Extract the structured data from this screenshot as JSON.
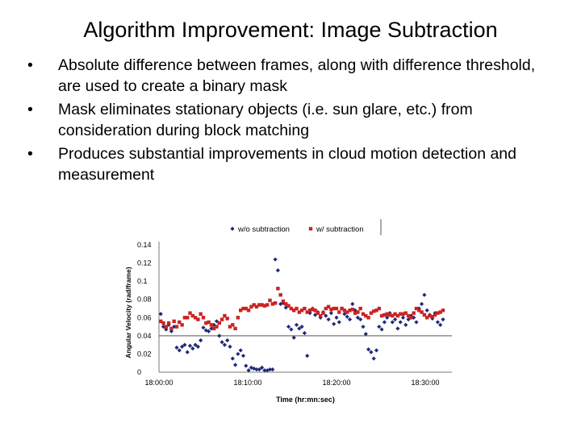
{
  "slide": {
    "title": "Algorithm Improvement: Image Subtraction",
    "bullets": [
      "Absolute difference between frames, along with difference threshold, are used to create a binary mask",
      "Mask eliminates stationary objects (i.e. sun glare, etc.) from consideration during block matching",
      "Produces substantial improvements in cloud motion detection and measurement"
    ],
    "bullet_symbol": "•"
  },
  "chart_data": {
    "type": "scatter",
    "xlabel": "Time (hr:mn:sec)",
    "ylabel": "Angular Velocity (rad/frame)",
    "ylim": [
      0,
      0.14
    ],
    "yticks": [
      0,
      0.02,
      0.04,
      0.06,
      0.08,
      0.1,
      0.12,
      0.14
    ],
    "ytick_labels": [
      "0",
      "0.02",
      "0.04",
      "0.06",
      "0.08",
      "0.1",
      "0.12",
      "0.14"
    ],
    "xlim_minutes": [
      0,
      33
    ],
    "xticks_minutes": [
      0,
      10,
      20,
      30
    ],
    "xtick_labels": [
      "18:00:00",
      "18:10:00",
      "18:20:00",
      "18:30:00"
    ],
    "grid": {
      "horizontal_at": [
        0.04
      ],
      "vertical": false
    },
    "legend_placement": "top",
    "series": [
      {
        "name": "w/o subtraction",
        "color": "#1f2a7a",
        "marker": "diamond",
        "x_minutes": [
          0.2,
          0.5,
          0.8,
          1.1,
          1.4,
          1.7,
          2.0,
          2.3,
          2.6,
          2.9,
          3.2,
          3.5,
          3.8,
          4.1,
          4.4,
          4.7,
          5.0,
          5.3,
          5.6,
          5.9,
          6.2,
          6.5,
          6.8,
          7.1,
          7.4,
          7.7,
          8.0,
          8.3,
          8.6,
          8.9,
          9.2,
          9.5,
          9.8,
          10.1,
          10.4,
          10.7,
          11.0,
          11.3,
          11.6,
          11.9,
          12.2,
          12.5,
          12.8,
          13.1,
          13.4,
          13.7,
          14.0,
          14.3,
          14.6,
          14.9,
          15.2,
          15.5,
          15.8,
          16.1,
          16.4,
          16.7,
          17.0,
          17.3,
          17.6,
          17.9,
          18.2,
          18.5,
          18.8,
          19.1,
          19.4,
          19.7,
          20.0,
          20.3,
          20.6,
          20.9,
          21.2,
          21.5,
          21.8,
          22.1,
          22.4,
          22.7,
          23.0,
          23.3,
          23.6,
          23.9,
          24.2,
          24.5,
          24.8,
          25.1,
          25.4,
          25.7,
          26.0,
          26.3,
          26.6,
          26.9,
          27.2,
          27.5,
          27.8,
          28.1,
          28.4,
          28.7,
          29.0,
          29.3,
          29.6,
          29.9,
          30.2,
          30.5,
          30.8,
          31.1,
          31.4,
          31.7,
          32.0
        ],
        "values": [
          0.064,
          0.05,
          0.047,
          0.052,
          0.045,
          0.05,
          0.027,
          0.024,
          0.028,
          0.03,
          0.022,
          0.029,
          0.026,
          0.03,
          0.028,
          0.035,
          0.049,
          0.046,
          0.045,
          0.048,
          0.052,
          0.056,
          0.04,
          0.033,
          0.03,
          0.035,
          0.028,
          0.015,
          0.008,
          0.02,
          0.024,
          0.018,
          0.007,
          0.002,
          0.005,
          0.004,
          0.003,
          0.003,
          0.005,
          0.002,
          0.002,
          0.003,
          0.003,
          0.124,
          0.112,
          0.075,
          0.076,
          0.071,
          0.05,
          0.047,
          0.038,
          0.052,
          0.048,
          0.05,
          0.043,
          0.018,
          0.065,
          0.07,
          0.063,
          0.066,
          0.06,
          0.066,
          0.062,
          0.058,
          0.065,
          0.053,
          0.06,
          0.055,
          0.07,
          0.064,
          0.061,
          0.058,
          0.075,
          0.068,
          0.06,
          0.058,
          0.05,
          0.042,
          0.025,
          0.022,
          0.015,
          0.024,
          0.05,
          0.047,
          0.055,
          0.06,
          0.065,
          0.055,
          0.058,
          0.048,
          0.055,
          0.06,
          0.052,
          0.058,
          0.062,
          0.06,
          0.055,
          0.07,
          0.075,
          0.085,
          0.068,
          0.063,
          0.059,
          0.065,
          0.055,
          0.052,
          0.058
        ]
      },
      {
        "name": "w/ subtraction",
        "color": "#cc2222",
        "marker": "square",
        "x_minutes": [
          0.2,
          0.5,
          0.8,
          1.1,
          1.4,
          1.7,
          2.0,
          2.3,
          2.6,
          2.9,
          3.2,
          3.5,
          3.8,
          4.1,
          4.4,
          4.7,
          5.0,
          5.3,
          5.6,
          5.9,
          6.2,
          6.5,
          6.8,
          7.1,
          7.4,
          7.7,
          8.0,
          8.3,
          8.6,
          8.9,
          9.2,
          9.5,
          9.8,
          10.1,
          10.4,
          10.7,
          11.0,
          11.3,
          11.6,
          11.9,
          12.2,
          12.5,
          12.8,
          13.1,
          13.4,
          13.7,
          14.0,
          14.3,
          14.6,
          14.9,
          15.2,
          15.5,
          15.8,
          16.1,
          16.4,
          16.7,
          17.0,
          17.3,
          17.6,
          17.9,
          18.2,
          18.5,
          18.8,
          19.1,
          19.4,
          19.7,
          20.0,
          20.3,
          20.6,
          20.9,
          21.2,
          21.5,
          21.8,
          22.1,
          22.4,
          22.7,
          23.0,
          23.3,
          23.6,
          23.9,
          24.2,
          24.5,
          24.8,
          25.1,
          25.4,
          25.7,
          26.0,
          26.3,
          26.6,
          26.9,
          27.2,
          27.5,
          27.8,
          28.1,
          28.4,
          28.7,
          29.0,
          29.3,
          29.6,
          29.9,
          30.2,
          30.5,
          30.8,
          31.1,
          31.4,
          31.7,
          32.0
        ],
        "values": [
          0.056,
          0.054,
          0.05,
          0.054,
          0.048,
          0.056,
          0.05,
          0.055,
          0.052,
          0.06,
          0.06,
          0.065,
          0.062,
          0.06,
          0.058,
          0.064,
          0.06,
          0.054,
          0.055,
          0.052,
          0.048,
          0.05,
          0.054,
          0.058,
          0.062,
          0.059,
          0.05,
          0.052,
          0.048,
          0.06,
          0.068,
          0.07,
          0.07,
          0.068,
          0.072,
          0.074,
          0.072,
          0.074,
          0.074,
          0.073,
          0.074,
          0.079,
          0.075,
          0.076,
          0.092,
          0.085,
          0.078,
          0.075,
          0.073,
          0.07,
          0.068,
          0.07,
          0.066,
          0.068,
          0.07,
          0.066,
          0.068,
          0.069,
          0.068,
          0.065,
          0.062,
          0.065,
          0.07,
          0.072,
          0.069,
          0.07,
          0.07,
          0.066,
          0.07,
          0.068,
          0.066,
          0.068,
          0.069,
          0.065,
          0.066,
          0.07,
          0.064,
          0.062,
          0.06,
          0.065,
          0.067,
          0.068,
          0.07,
          0.062,
          0.063,
          0.064,
          0.063,
          0.062,
          0.064,
          0.062,
          0.064,
          0.064,
          0.065,
          0.062,
          0.06,
          0.065,
          0.07,
          0.068,
          0.066,
          0.063,
          0.06,
          0.062,
          0.061,
          0.063,
          0.065,
          0.066,
          0.068
        ]
      }
    ]
  }
}
